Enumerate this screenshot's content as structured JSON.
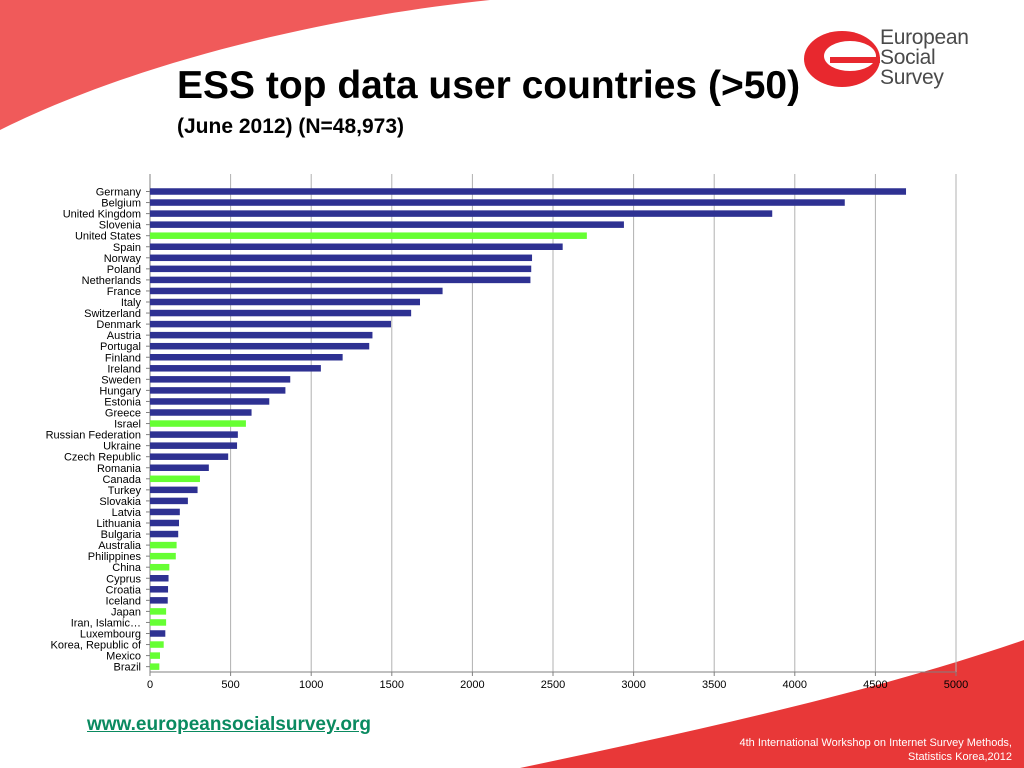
{
  "title": "ESS top data user countries (>50)",
  "subtitle": "(June 2012) (N=48,973)",
  "logo": {
    "line1": "European",
    "line2": "Social",
    "line3": "Survey"
  },
  "website": "www.europeansocialsurvey.org",
  "footer": {
    "line1": "4th International Workshop on Internet Survey Methods,",
    "line2": "Statistics Korea,2012"
  },
  "colors": {
    "europe": "#2e3192",
    "non_europe": "#66ff33",
    "banner": "#f05a5a",
    "logo_red": "#e8282e"
  },
  "chart_data": {
    "type": "bar",
    "orientation": "horizontal",
    "categories": [
      "Germany",
      "Belgium",
      "United Kingdom",
      "Slovenia",
      "United States",
      "Spain",
      "Norway",
      "Poland",
      "Netherlands",
      "France",
      "Italy",
      "Switzerland",
      "Denmark",
      "Austria",
      "Portugal",
      "Finland",
      "Ireland",
      "Sweden",
      "Hungary",
      "Estonia",
      "Greece",
      "Israel",
      "Russian Federation",
      "Ukraine",
      "Czech Republic",
      "Romania",
      "Canada",
      "Turkey",
      "Slovakia",
      "Latvia",
      "Lithuania",
      "Bulgaria",
      "Australia",
      "Philippines",
      "China",
      "Cyprus",
      "Croatia",
      "Iceland",
      "Japan",
      "Iran, Islamic…",
      "Luxembourg",
      "Korea, Republic of",
      "Mexico",
      "Brazil"
    ],
    "values": [
      4690,
      4310,
      3860,
      2940,
      2710,
      2560,
      2370,
      2365,
      2360,
      1815,
      1675,
      1620,
      1495,
      1380,
      1360,
      1195,
      1060,
      870,
      840,
      740,
      630,
      595,
      545,
      540,
      485,
      365,
      310,
      295,
      235,
      185,
      180,
      175,
      165,
      160,
      120,
      115,
      112,
      110,
      100,
      100,
      95,
      85,
      62,
      58
    ],
    "colors": [
      "europe",
      "europe",
      "europe",
      "europe",
      "non_europe",
      "europe",
      "europe",
      "europe",
      "europe",
      "europe",
      "europe",
      "europe",
      "europe",
      "europe",
      "europe",
      "europe",
      "europe",
      "europe",
      "europe",
      "europe",
      "europe",
      "non_europe",
      "europe",
      "europe",
      "europe",
      "europe",
      "non_europe",
      "europe",
      "europe",
      "europe",
      "europe",
      "europe",
      "non_europe",
      "non_europe",
      "non_europe",
      "europe",
      "europe",
      "europe",
      "non_europe",
      "non_europe",
      "europe",
      "non_europe",
      "non_europe",
      "non_europe"
    ],
    "x_ticks": [
      0,
      500,
      1000,
      1500,
      2000,
      2500,
      3000,
      3500,
      4000,
      4500,
      5000
    ],
    "xlim": [
      0,
      5000
    ],
    "grid": true,
    "legend": "none"
  }
}
